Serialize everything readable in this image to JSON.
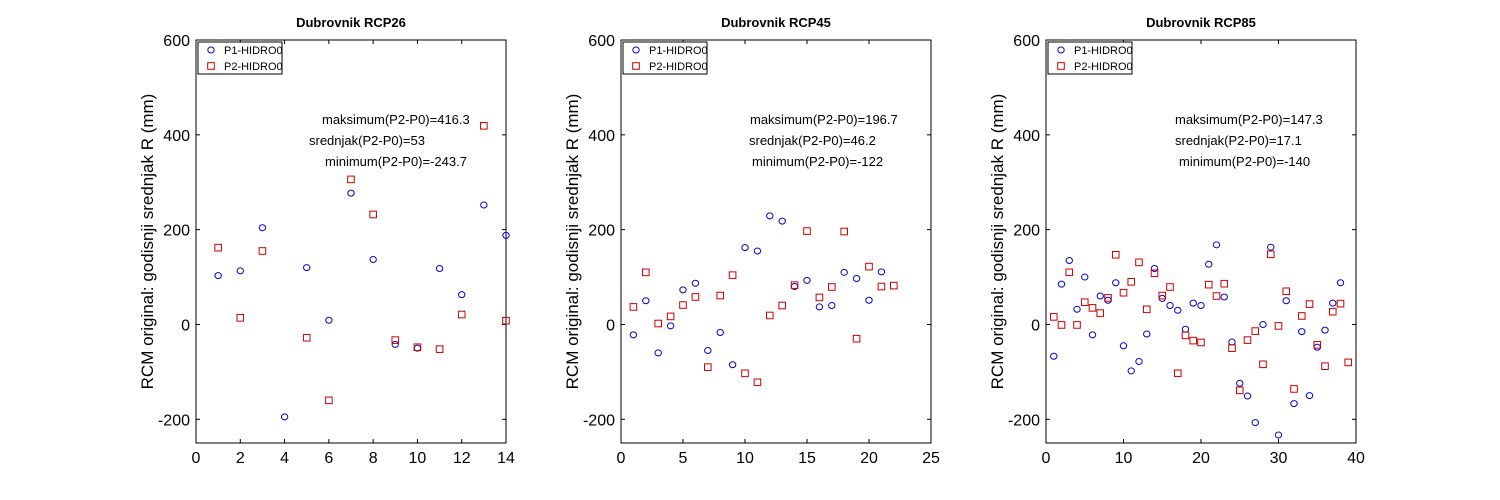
{
  "chart_data": [
    {
      "type": "scatter",
      "title": "Dubrovnik RCP26",
      "ylabel": "RCM original: godisnji srednjak R (mm)",
      "xlabel": "",
      "xlim": [
        0,
        14
      ],
      "ylim": [
        -250,
        600
      ],
      "xticks": [
        0,
        2,
        4,
        6,
        8,
        10,
        12,
        14
      ],
      "yticks": [
        -200,
        0,
        200,
        400,
        600
      ],
      "grid": false,
      "legend": "top-left",
      "annotations": [
        "maksimum(P2-P0)=416.3",
        "srednjak(P2-P0)=53",
        "minimum(P2-P0)=-243.7"
      ],
      "series": [
        {
          "name": "P1-HIDRO0",
          "marker": "circle",
          "color": "#0000cc",
          "x": [
            1,
            2,
            3,
            4,
            5,
            6,
            7,
            8,
            9,
            10,
            11,
            12,
            13,
            14
          ],
          "y": [
            103,
            113,
            204,
            -195,
            120,
            9,
            277,
            137,
            -42,
            -50,
            118,
            63,
            252,
            188
          ]
        },
        {
          "name": "P2-HIDRO0",
          "marker": "square",
          "color": "#cc0000",
          "x": [
            1,
            2,
            3,
            4,
            5,
            6,
            7,
            8,
            9,
            10,
            11,
            12,
            13,
            14
          ],
          "y": [
            162,
            14,
            155,
            null,
            -28,
            -160,
            306,
            232,
            -33,
            -48,
            -52,
            21,
            419,
            8
          ]
        }
      ]
    },
    {
      "type": "scatter",
      "title": "Dubrovnik RCP45",
      "ylabel": "RCM original: godisnji srednjak R (mm)",
      "xlabel": "",
      "xlim": [
        0,
        25
      ],
      "ylim": [
        -250,
        600
      ],
      "xticks": [
        0,
        5,
        10,
        15,
        20,
        25
      ],
      "yticks": [
        -200,
        0,
        200,
        400,
        600
      ],
      "grid": false,
      "legend": "top-left",
      "annotations": [
        "maksimum(P2-P0)=196.7",
        "srednjak(P2-P0)=46.2",
        "minimum(P2-P0)=-122"
      ],
      "series": [
        {
          "name": "P1-HIDRO0",
          "marker": "circle",
          "color": "#0000cc",
          "x": [
            1,
            2,
            3,
            4,
            5,
            6,
            7,
            8,
            9,
            10,
            11,
            12,
            13,
            14,
            15,
            16,
            17,
            18,
            19,
            20,
            21
          ],
          "y": [
            -22,
            50,
            -60,
            -3,
            73,
            87,
            -55,
            -17,
            -85,
            162,
            155,
            229,
            218,
            80,
            93,
            37,
            40,
            110,
            97,
            51,
            111
          ]
        },
        {
          "name": "P2-HIDRO0",
          "marker": "square",
          "color": "#cc0000",
          "x": [
            1,
            2,
            3,
            4,
            5,
            6,
            7,
            8,
            9,
            10,
            11,
            12,
            13,
            14,
            15,
            16,
            17,
            18,
            19,
            20,
            21,
            22
          ],
          "y": [
            37,
            110,
            2,
            17,
            41,
            58,
            -90,
            61,
            104,
            -103,
            -122,
            19,
            40,
            83,
            197,
            57,
            79,
            196,
            -30,
            122,
            80,
            82
          ]
        }
      ]
    },
    {
      "type": "scatter",
      "title": "Dubrovnik RCP85",
      "ylabel": "RCM original: godisnji srednjak R (mm)",
      "xlabel": "",
      "xlim": [
        0,
        40
      ],
      "ylim": [
        -250,
        600
      ],
      "xticks": [
        0,
        10,
        20,
        30,
        40
      ],
      "yticks": [
        -200,
        0,
        200,
        400,
        600
      ],
      "grid": false,
      "legend": "top-left",
      "annotations": [
        "maksimum(P2-P0)=147.3",
        "srednjak(P2-P0)=17.1",
        "minimum(P2-P0)=-140"
      ],
      "series": [
        {
          "name": "P1-HIDRO0",
          "marker": "circle",
          "color": "#0000cc",
          "x": [
            1,
            2,
            3,
            4,
            5,
            6,
            7,
            8,
            9,
            10,
            11,
            12,
            13,
            14,
            15,
            16,
            17,
            18,
            19,
            20,
            21,
            22,
            23,
            24,
            25,
            26,
            27,
            28,
            29,
            30,
            31,
            32,
            33,
            34,
            35,
            36,
            37,
            38
          ],
          "y": [
            -67,
            85,
            135,
            32,
            100,
            -22,
            60,
            51,
            88,
            -45,
            -98,
            -78,
            -20,
            118,
            55,
            40,
            30,
            -10,
            45,
            40,
            127,
            168,
            58,
            -37,
            -124,
            -151,
            -207,
            0,
            163,
            -233,
            50,
            -167,
            -15,
            -150,
            -48,
            -12,
            45,
            88
          ]
        },
        {
          "name": "P2-HIDRO0",
          "marker": "square",
          "color": "#cc0000",
          "x": [
            1,
            2,
            3,
            4,
            5,
            6,
            7,
            8,
            9,
            10,
            11,
            12,
            13,
            14,
            15,
            16,
            17,
            18,
            19,
            20,
            21,
            22,
            23,
            24,
            25,
            26,
            27,
            28,
            29,
            30,
            31,
            32,
            33,
            34,
            35,
            36,
            37,
            38,
            39
          ],
          "y": [
            16,
            -1,
            110,
            -1,
            47,
            35,
            24,
            56,
            147,
            67,
            90,
            131,
            32,
            108,
            61,
            79,
            -103,
            -23,
            -34,
            -38,
            84,
            60,
            86,
            -50,
            -139,
            -33,
            -14,
            -84,
            148,
            -3,
            70,
            -136,
            18,
            43,
            -43,
            -88,
            27,
            44,
            -80
          ]
        }
      ]
    }
  ]
}
